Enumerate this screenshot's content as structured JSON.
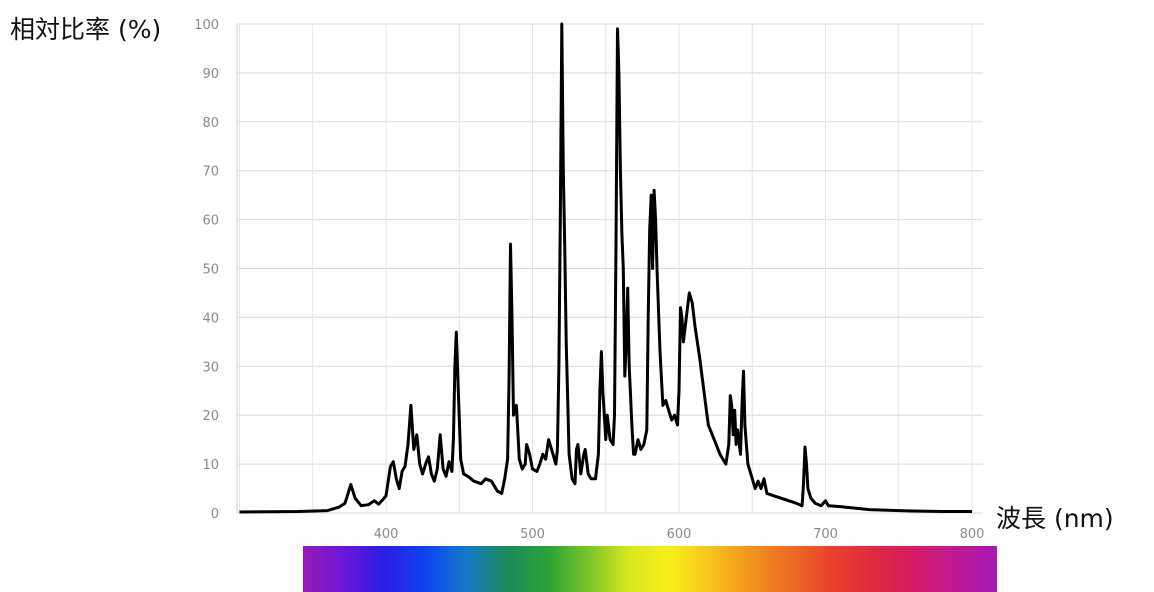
{
  "chart_data": {
    "type": "line",
    "title": "",
    "xlabel": "波長 (nm)",
    "ylabel": "相対比率 (%)",
    "xlim": [
      300,
      800
    ],
    "ylim": [
      0,
      100
    ],
    "x_ticks": [
      400,
      500,
      600,
      700,
      800
    ],
    "y_ticks": [
      0,
      10,
      20,
      30,
      40,
      50,
      60,
      70,
      80,
      90,
      100
    ],
    "grid": true,
    "spectrum_bar": {
      "range_nm": [
        380,
        780
      ],
      "colors": [
        "#9a1ab8",
        "#6a17d6",
        "#2a1fe6",
        "#1042f0",
        "#147ac8",
        "#1b8a5a",
        "#2aa336",
        "#7cc52a",
        "#d8e81e",
        "#f7f01a",
        "#f8c21a",
        "#f2921e",
        "#ec6a22",
        "#e6402c",
        "#e0283e",
        "#d41c66",
        "#bf1a96",
        "#a81ab4"
      ]
    },
    "series": [
      {
        "color": "#000000",
        "points": [
          [
            300,
            0.2
          ],
          [
            340,
            0.3
          ],
          [
            360,
            0.5
          ],
          [
            368,
            1.2
          ],
          [
            372,
            2
          ],
          [
            376,
            5.8
          ],
          [
            379,
            3
          ],
          [
            383,
            1.5
          ],
          [
            388,
            1.7
          ],
          [
            392,
            2.5
          ],
          [
            395,
            1.8
          ],
          [
            400,
            3.5
          ],
          [
            403,
            9.5
          ],
          [
            405,
            10.5
          ],
          [
            407,
            7
          ],
          [
            409,
            5
          ],
          [
            411,
            8.5
          ],
          [
            413,
            9.5
          ],
          [
            415,
            14
          ],
          [
            417,
            22
          ],
          [
            419,
            13
          ],
          [
            421,
            16
          ],
          [
            423,
            10
          ],
          [
            425,
            8
          ],
          [
            427,
            10
          ],
          [
            429,
            11.5
          ],
          [
            431,
            8
          ],
          [
            433,
            6.5
          ],
          [
            435,
            9
          ],
          [
            437,
            16
          ],
          [
            439,
            9
          ],
          [
            441,
            7.5
          ],
          [
            443,
            10.5
          ],
          [
            445,
            8.5
          ],
          [
            446,
            15
          ],
          [
            447,
            30
          ],
          [
            448,
            37
          ],
          [
            449,
            28
          ],
          [
            451,
            11
          ],
          [
            453,
            8
          ],
          [
            456,
            7.5
          ],
          [
            460,
            6.5
          ],
          [
            465,
            6
          ],
          [
            468,
            7
          ],
          [
            472,
            6.5
          ],
          [
            476,
            4.5
          ],
          [
            479,
            4
          ],
          [
            481,
            7
          ],
          [
            483,
            11
          ],
          [
            484,
            28
          ],
          [
            485,
            55
          ],
          [
            486,
            40
          ],
          [
            487,
            20
          ],
          [
            489,
            22
          ],
          [
            491,
            11
          ],
          [
            493,
            9
          ],
          [
            495,
            10
          ],
          [
            496,
            14
          ],
          [
            498,
            12
          ],
          [
            500,
            9
          ],
          [
            503,
            8.5
          ],
          [
            505,
            10
          ],
          [
            507,
            12
          ],
          [
            509,
            11
          ],
          [
            511,
            15
          ],
          [
            512,
            14
          ],
          [
            514,
            12
          ],
          [
            516,
            10
          ],
          [
            517,
            13
          ],
          [
            518,
            30
          ],
          [
            519,
            60
          ],
          [
            520,
            100
          ],
          [
            521,
            70
          ],
          [
            522,
            55
          ],
          [
            523,
            35
          ],
          [
            525,
            12
          ],
          [
            527,
            7
          ],
          [
            529,
            6
          ],
          [
            530,
            13
          ],
          [
            531,
            14
          ],
          [
            533,
            8
          ],
          [
            535,
            12
          ],
          [
            536,
            13
          ],
          [
            538,
            8
          ],
          [
            540,
            7
          ],
          [
            543,
            7
          ],
          [
            545,
            12
          ],
          [
            546,
            25
          ],
          [
            547,
            33
          ],
          [
            548,
            25
          ],
          [
            550,
            15
          ],
          [
            551,
            20
          ],
          [
            553,
            15
          ],
          [
            555,
            14
          ],
          [
            556,
            20
          ],
          [
            557,
            55
          ],
          [
            558,
            99
          ],
          [
            559,
            90
          ],
          [
            560,
            70
          ],
          [
            561,
            57
          ],
          [
            562,
            50
          ],
          [
            563,
            28
          ],
          [
            564,
            35
          ],
          [
            565,
            46
          ],
          [
            566,
            30
          ],
          [
            568,
            17
          ],
          [
            569,
            12
          ],
          [
            570,
            12
          ],
          [
            572,
            15
          ],
          [
            574,
            13
          ],
          [
            576,
            14
          ],
          [
            578,
            17
          ],
          [
            579,
            40
          ],
          [
            580,
            58
          ],
          [
            581,
            65
          ],
          [
            582,
            50
          ],
          [
            583,
            66
          ],
          [
            584,
            60
          ],
          [
            585,
            50
          ],
          [
            587,
            33
          ],
          [
            589,
            22
          ],
          [
            591,
            23
          ],
          [
            593,
            21
          ],
          [
            595,
            19
          ],
          [
            597,
            20
          ],
          [
            599,
            18
          ],
          [
            600,
            25
          ],
          [
            601,
            42
          ],
          [
            602,
            40
          ],
          [
            603,
            35
          ],
          [
            605,
            40
          ],
          [
            607,
            45
          ],
          [
            609,
            43
          ],
          [
            611,
            38
          ],
          [
            614,
            32
          ],
          [
            617,
            25
          ],
          [
            620,
            18
          ],
          [
            624,
            15
          ],
          [
            628,
            12
          ],
          [
            632,
            10
          ],
          [
            634,
            14
          ],
          [
            635,
            24
          ],
          [
            636,
            22
          ],
          [
            637,
            16
          ],
          [
            638,
            21
          ],
          [
            639,
            14
          ],
          [
            640,
            17
          ],
          [
            642,
            12
          ],
          [
            643,
            22
          ],
          [
            644,
            29
          ],
          [
            645,
            18
          ],
          [
            647,
            10
          ],
          [
            650,
            7
          ],
          [
            652,
            5
          ],
          [
            654,
            6.5
          ],
          [
            656,
            5
          ],
          [
            658,
            7
          ],
          [
            660,
            4
          ],
          [
            665,
            3.5
          ],
          [
            670,
            3
          ],
          [
            675,
            2.5
          ],
          [
            680,
            2
          ],
          [
            684,
            1.5
          ],
          [
            685,
            6
          ],
          [
            686,
            13.5
          ],
          [
            687,
            10
          ],
          [
            688,
            5
          ],
          [
            690,
            3
          ],
          [
            693,
            2
          ],
          [
            697,
            1.5
          ],
          [
            700,
            2.5
          ],
          [
            702,
            1.5
          ],
          [
            710,
            1.3
          ],
          [
            720,
            1
          ],
          [
            730,
            0.7
          ],
          [
            740,
            0.6
          ],
          [
            750,
            0.5
          ],
          [
            760,
            0.4
          ],
          [
            780,
            0.3
          ],
          [
            800,
            0.3
          ]
        ]
      }
    ]
  }
}
